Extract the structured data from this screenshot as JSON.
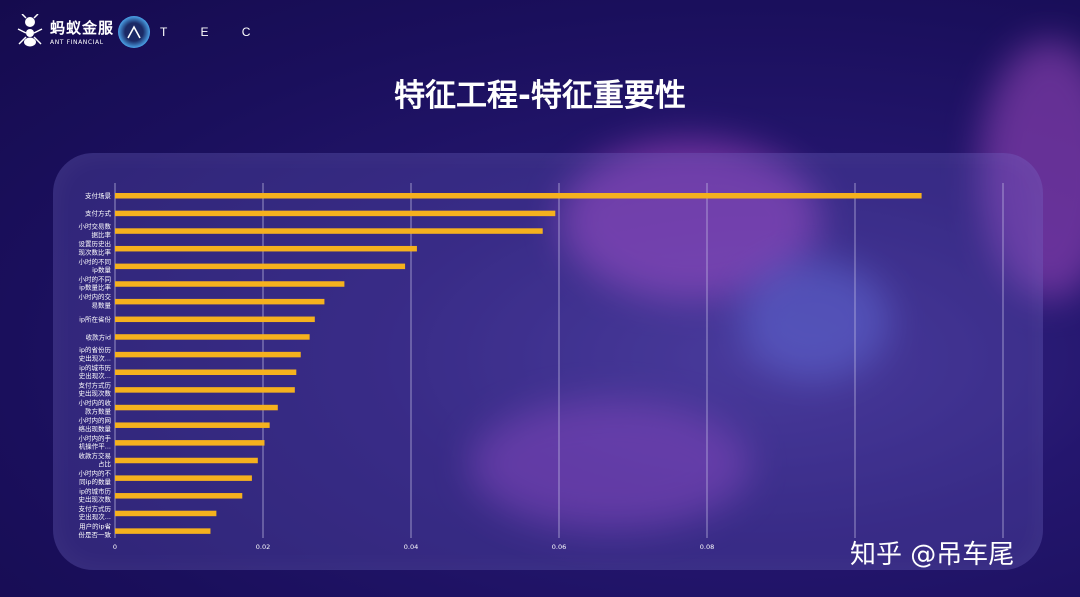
{
  "header": {
    "brand_cn": "蚂蚁金服",
    "brand_en": "ANT FINANCIAL",
    "atec_letters": "T E C"
  },
  "page_title": "特征工程-特征重要性",
  "watermark": "知乎 @吊车尾",
  "colors": {
    "bar": "#f5b11e",
    "grid": "#c8c4e8",
    "text": "#ffffff"
  },
  "chart_data": {
    "type": "bar",
    "orientation": "horizontal",
    "title": "",
    "xlabel": "",
    "ylabel": "",
    "xlim": [
      0,
      0.12
    ],
    "xticks": [
      0,
      0.02,
      0.04,
      0.06,
      0.08
    ],
    "xtick_labels": [
      "0",
      "0.02",
      "0.04",
      "0.06",
      "0.08"
    ],
    "categories": [
      [
        "支付场景"
      ],
      [
        "支付方式"
      ],
      [
        "小时交易数",
        "据比率"
      ],
      [
        "设置历史出",
        "现次数比率"
      ],
      [
        "小时的不同",
        "ip数量"
      ],
      [
        "小时的不同",
        "ip数量比率"
      ],
      [
        "小时内的交",
        "易数量"
      ],
      [
        "ip所在省份"
      ],
      [
        "收款方id"
      ],
      [
        "ip的省份历",
        "史出现次..."
      ],
      [
        "ip的城市历",
        "史出现次..."
      ],
      [
        "支付方式历",
        "史出现次数"
      ],
      [
        "小时内的收",
        "款方数量"
      ],
      [
        "小时内的网",
        "络出现数量"
      ],
      [
        "小时内的手",
        "机操作平..."
      ],
      [
        "收款方交易",
        "占比"
      ],
      [
        "小时内的不",
        "同ip的数量"
      ],
      [
        "ip的城市历",
        "史出现次数"
      ],
      [
        "支付方式历",
        "史出现次..."
      ],
      [
        "用户的ip省",
        "份是否一致"
      ]
    ],
    "values": [
      0.109,
      0.0595,
      0.0578,
      0.0408,
      0.0392,
      0.031,
      0.0283,
      0.027,
      0.0263,
      0.0251,
      0.0245,
      0.0243,
      0.022,
      0.0209,
      0.0202,
      0.0193,
      0.0185,
      0.0172,
      0.0137,
      0.0129
    ]
  }
}
